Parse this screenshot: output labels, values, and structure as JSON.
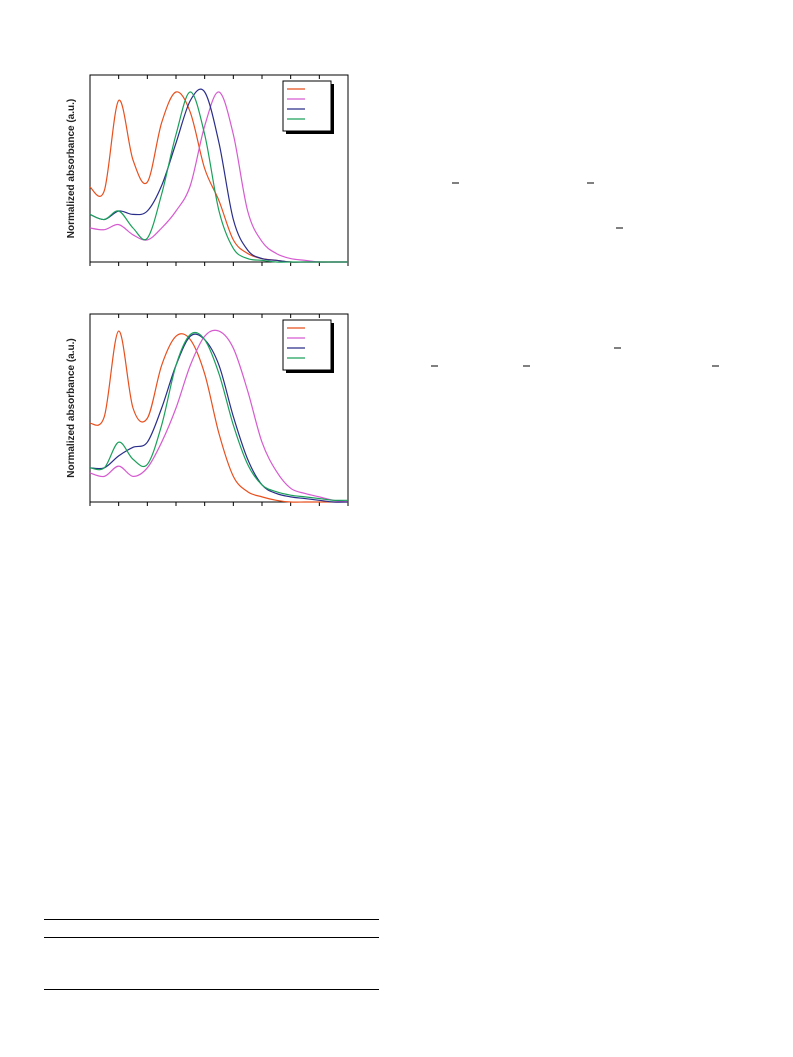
{
  "chart_data": [
    {
      "type": "line",
      "y_label": "Normalized absorbance (a.u.)",
      "x": [
        0,
        0.5,
        1,
        1.5,
        2,
        2.5,
        3,
        3.5,
        4,
        4.5,
        5,
        5.5,
        6,
        6.5,
        7,
        7.5,
        8,
        8.5,
        9
      ],
      "xlim": [
        0,
        9
      ],
      "xticks": [
        0,
        1,
        2,
        3,
        4,
        5,
        6,
        7,
        8,
        9
      ],
      "ylim": [
        0,
        1.1
      ],
      "series": [
        {
          "color": "#e8501e",
          "values": [
            0.44,
            0.42,
            0.95,
            0.6,
            0.47,
            0.82,
            1.0,
            0.88,
            0.55,
            0.36,
            0.13,
            0.05,
            0.02,
            0.01,
            0,
            0,
            0,
            0,
            0
          ]
        },
        {
          "color": "#d65bd0",
          "values": [
            0.2,
            0.19,
            0.22,
            0.16,
            0.13,
            0.2,
            0.3,
            0.45,
            0.8,
            1.0,
            0.75,
            0.3,
            0.12,
            0.05,
            0.02,
            0.01,
            0,
            0,
            0
          ]
        },
        {
          "color": "#2a2e8a",
          "values": [
            0.28,
            0.25,
            0.3,
            0.28,
            0.3,
            0.45,
            0.7,
            0.95,
            1.0,
            0.7,
            0.25,
            0.07,
            0.02,
            0.01,
            0,
            0,
            0,
            0,
            0
          ]
        },
        {
          "color": "#1aa05a",
          "values": [
            0.28,
            0.25,
            0.3,
            0.2,
            0.14,
            0.4,
            0.75,
            1.0,
            0.75,
            0.3,
            0.08,
            0.02,
            0.01,
            0,
            0,
            0,
            0,
            0,
            0
          ]
        }
      ]
    },
    {
      "type": "line",
      "y_label": "Normalized absorbance (a.u.)",
      "x": [
        0,
        0.5,
        1,
        1.5,
        2,
        2.5,
        3,
        3.5,
        4,
        4.5,
        5,
        5.5,
        6,
        6.5,
        7,
        7.5,
        8,
        8.5,
        9
      ],
      "xlim": [
        0,
        9
      ],
      "xticks": [
        0,
        1,
        2,
        3,
        4,
        5,
        6,
        7,
        8,
        9
      ],
      "ylim": [
        0,
        1.1
      ],
      "series": [
        {
          "color": "#e8501e",
          "values": [
            0.46,
            0.5,
            1.0,
            0.55,
            0.49,
            0.8,
            0.97,
            0.95,
            0.75,
            0.4,
            0.15,
            0.06,
            0.03,
            0.01,
            0,
            0,
            0,
            0,
            0
          ]
        },
        {
          "color": "#d65bd0",
          "values": [
            0.17,
            0.15,
            0.21,
            0.15,
            0.2,
            0.35,
            0.55,
            0.8,
            0.97,
            1.0,
            0.9,
            0.65,
            0.35,
            0.18,
            0.08,
            0.05,
            0.03,
            0.01,
            0
          ]
        },
        {
          "color": "#2a2e8a",
          "values": [
            0.2,
            0.2,
            0.27,
            0.32,
            0.35,
            0.55,
            0.8,
            0.97,
            0.95,
            0.8,
            0.5,
            0.25,
            0.1,
            0.05,
            0.03,
            0.02,
            0.01,
            0,
            0
          ]
        },
        {
          "color": "#1aa05a",
          "values": [
            0.2,
            0.2,
            0.35,
            0.25,
            0.22,
            0.45,
            0.8,
            0.98,
            0.95,
            0.75,
            0.45,
            0.22,
            0.1,
            0.06,
            0.04,
            0.03,
            0.02,
            0.01,
            0.01
          ]
        }
      ]
    }
  ]
}
